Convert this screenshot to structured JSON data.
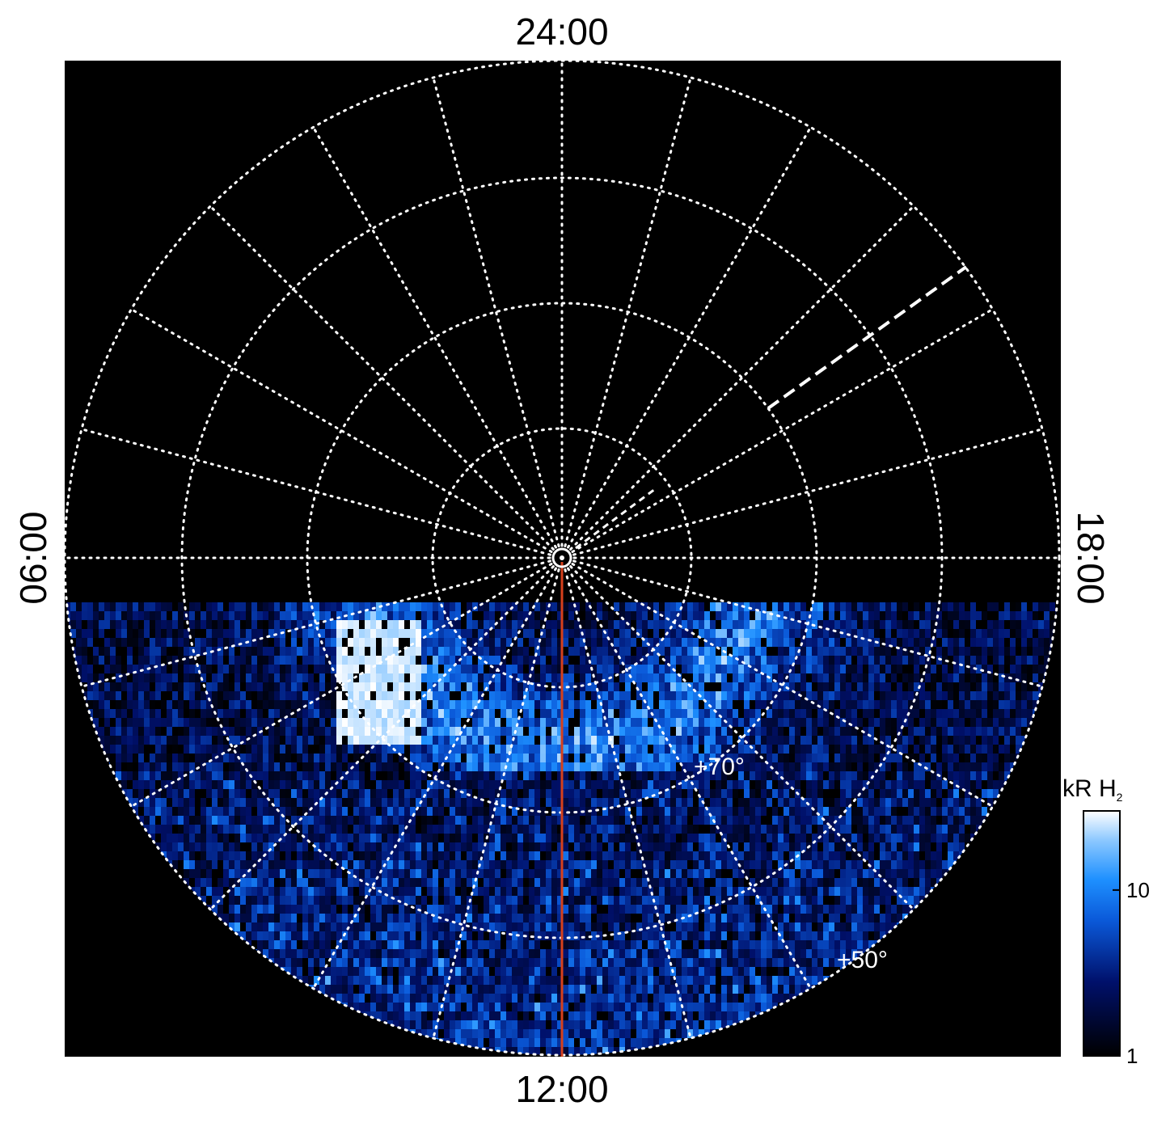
{
  "chart_data": {
    "type": "polar-image",
    "hour_labels": {
      "top": "24:00",
      "bottom": "12:00",
      "left": "06:00",
      "right": "18:00"
    },
    "latitude_labels": [
      "+70°",
      "+50°"
    ],
    "colorbar": {
      "title": "kR H",
      "title_subscript": "2",
      "log": true,
      "lim": [
        1,
        30
      ],
      "ticks": [
        1,
        10
      ]
    }
  }
}
